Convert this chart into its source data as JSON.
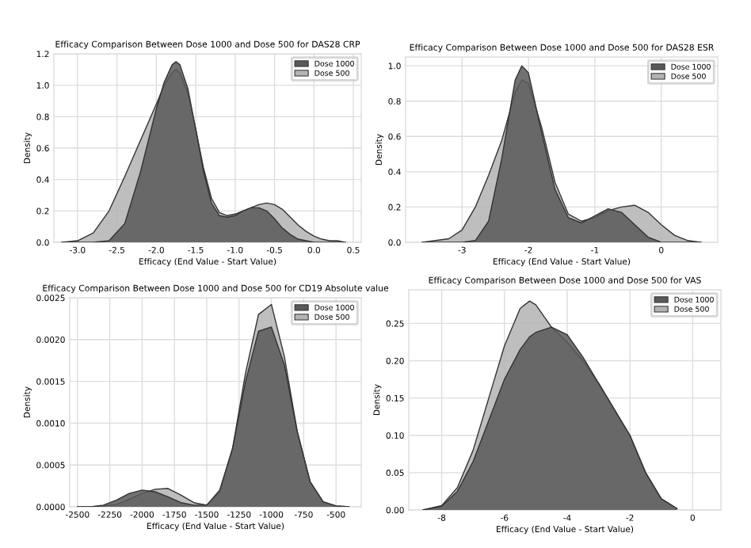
{
  "chart_data": [
    {
      "type": "area",
      "title": "Efficacy Comparison Between Dose 1000 and Dose 500 for DAS28 CRP",
      "xlabel": "Efficacy (End Value - Start Value)",
      "ylabel": "Density",
      "x": [
        -3.2,
        -3.0,
        -2.8,
        -2.6,
        -2.4,
        -2.2,
        -2.0,
        -1.9,
        -1.8,
        -1.75,
        -1.7,
        -1.6,
        -1.5,
        -1.4,
        -1.3,
        -1.2,
        -1.1,
        -1.0,
        -0.9,
        -0.8,
        -0.7,
        -0.6,
        -0.5,
        -0.4,
        -0.3,
        -0.2,
        -0.1,
        0.0,
        0.1,
        0.2,
        0.3,
        0.4
      ],
      "series": [
        {
          "name": "Dose 1000",
          "color": "#595959",
          "values": [
            0,
            0,
            0,
            0.01,
            0.12,
            0.45,
            0.85,
            1.02,
            1.13,
            1.15,
            1.13,
            0.98,
            0.72,
            0.45,
            0.25,
            0.17,
            0.16,
            0.17,
            0.2,
            0.22,
            0.22,
            0.2,
            0.15,
            0.09,
            0.05,
            0.02,
            0.01,
            0,
            0,
            0,
            0,
            0
          ]
        },
        {
          "name": "Dose 500",
          "color": "#b3b3b3",
          "values": [
            0,
            0.01,
            0.06,
            0.2,
            0.42,
            0.65,
            0.88,
            1.0,
            1.08,
            1.1,
            1.08,
            0.95,
            0.72,
            0.47,
            0.28,
            0.19,
            0.17,
            0.18,
            0.2,
            0.22,
            0.24,
            0.25,
            0.24,
            0.21,
            0.16,
            0.11,
            0.07,
            0.04,
            0.02,
            0.01,
            0.01,
            0
          ]
        }
      ],
      "xlim": [
        -3.3,
        0.6
      ],
      "ylim": [
        0,
        1.2
      ],
      "xticks": [
        {
          "value": -3.0,
          "label": "-3.0"
        },
        {
          "value": -2.5,
          "label": "-2.5"
        },
        {
          "value": -2.0,
          "label": "-2.0"
        },
        {
          "value": -1.5,
          "label": "-1.5"
        },
        {
          "value": -1.0,
          "label": "-1.0"
        },
        {
          "value": -0.5,
          "label": "-0.5"
        },
        {
          "value": 0,
          "label": "0.0"
        },
        {
          "value": 0.5,
          "label": "0.5"
        }
      ],
      "yticks": [
        {
          "value": 0,
          "label": "0.0"
        },
        {
          "value": 0.2,
          "label": "0.2"
        },
        {
          "value": 0.4,
          "label": "0.4"
        },
        {
          "value": 0.6,
          "label": "0.6"
        },
        {
          "value": 0.8,
          "label": "0.8"
        },
        {
          "value": 1.0,
          "label": "1.0"
        },
        {
          "value": 1.2,
          "label": "1.2"
        }
      ],
      "grid": true,
      "legend": "top right"
    },
    {
      "type": "area",
      "title": "Efficacy Comparison Between Dose 1000 and Dose 500 for DAS28 ESR",
      "xlabel": "Efficacy (End Value - Start Value)",
      "ylabel": "Density",
      "x": [
        -3.6,
        -3.4,
        -3.2,
        -3.0,
        -2.8,
        -2.6,
        -2.4,
        -2.2,
        -2.1,
        -2.0,
        -1.8,
        -1.6,
        -1.4,
        -1.2,
        -1.0,
        -0.8,
        -0.6,
        -0.4,
        -0.2,
        0,
        0.2,
        0.4,
        0.6
      ],
      "series": [
        {
          "name": "Dose 1000",
          "color": "#595959",
          "values": [
            0,
            0,
            0,
            0,
            0.01,
            0.12,
            0.48,
            0.92,
            1.0,
            0.96,
            0.62,
            0.3,
            0.14,
            0.11,
            0.15,
            0.19,
            0.17,
            0.1,
            0.03,
            0,
            0,
            0,
            0
          ]
        },
        {
          "name": "Dose 500",
          "color": "#b3b3b3",
          "values": [
            0,
            0.01,
            0.02,
            0.07,
            0.2,
            0.38,
            0.58,
            0.85,
            0.92,
            0.9,
            0.65,
            0.34,
            0.16,
            0.12,
            0.14,
            0.18,
            0.2,
            0.21,
            0.17,
            0.1,
            0.04,
            0.01,
            0
          ]
        }
      ],
      "xlim": [
        -3.85,
        0.85
      ],
      "ylim": [
        0,
        1.05
      ],
      "xticks": [
        -3,
        -2,
        -1,
        0
      ],
      "yticks": [
        {
          "value": 0,
          "label": "0.0"
        },
        {
          "value": 0.2,
          "label": "0.2"
        },
        {
          "value": 0.4,
          "label": "0.4"
        },
        {
          "value": 0.6,
          "label": "0.6"
        },
        {
          "value": 0.8,
          "label": "0.8"
        },
        {
          "value": 1.0,
          "label": "1.0"
        }
      ],
      "grid": true,
      "legend": "top right"
    },
    {
      "type": "area",
      "title": "Efficacy Comparison Between Dose 1000 and Dose 500 for CD19 Absolute value",
      "xlabel": "Efficacy (End Value - Start Value)",
      "ylabel": "Density",
      "x": [
        -2500,
        -2400,
        -2300,
        -2200,
        -2100,
        -2000,
        -1900,
        -1800,
        -1700,
        -1600,
        -1500,
        -1400,
        -1300,
        -1200,
        -1100,
        -1000,
        -900,
        -800,
        -700,
        -600,
        -500,
        -400
      ],
      "series": [
        {
          "name": "Dose 1000",
          "color": "#595959",
          "values": [
            0,
            0,
            2e-05,
            8e-05,
            0.00016,
            0.0002,
            0.00018,
            0.00012,
            5e-05,
            2e-05,
            2e-05,
            0.0002,
            0.0007,
            0.0015,
            0.0021,
            0.00215,
            0.0017,
            0.0009,
            0.0003,
            6e-05,
            1e-05,
            0
          ]
        },
        {
          "name": "Dose 500",
          "color": "#b3b3b3",
          "values": [
            0,
            0,
            1e-05,
            3e-05,
            9e-05,
            0.00016,
            0.00021,
            0.00022,
            0.00014,
            5e-05,
            2e-05,
            0.00018,
            0.0007,
            0.0016,
            0.0023,
            0.00242,
            0.0018,
            0.0009,
            0.0003,
            6e-05,
            1e-05,
            0
          ]
        }
      ],
      "xlim": [
        -2560,
        -305
      ],
      "ylim": [
        0,
        0.0025
      ],
      "xticks": [
        -2500,
        -2250,
        -2000,
        -1750,
        -1500,
        -1250,
        -1000,
        -750,
        -500
      ],
      "yticks": [
        {
          "value": 0,
          "label": "0.0000"
        },
        {
          "value": 0.0005,
          "label": "0.0005"
        },
        {
          "value": 0.001,
          "label": "0.0010"
        },
        {
          "value": 0.0015,
          "label": "0.0015"
        },
        {
          "value": 0.002,
          "label": "0.0020"
        },
        {
          "value": 0.0025,
          "label": "0.0025"
        }
      ],
      "grid": true,
      "legend": "top right"
    },
    {
      "type": "area",
      "title": "Efficacy Comparison Between Dose 1000 and Dose 500 for VAS",
      "xlabel": "Efficacy (End Value - Start Value)",
      "ylabel": "Density",
      "x": [
        -8.6,
        -8,
        -7.5,
        -7,
        -6.5,
        -6,
        -5.5,
        -5.2,
        -5,
        -4.5,
        -4,
        -3.5,
        -3,
        -2.5,
        -2,
        -1.5,
        -1,
        -0.5
      ],
      "series": [
        {
          "name": "Dose 1000",
          "color": "#595959",
          "values": [
            0,
            0.005,
            0.025,
            0.065,
            0.12,
            0.175,
            0.215,
            0.232,
            0.238,
            0.245,
            0.235,
            0.205,
            0.17,
            0.135,
            0.1,
            0.05,
            0.015,
            0.002
          ]
        },
        {
          "name": "Dose 500",
          "color": "#b3b3b3",
          "values": [
            0,
            0.006,
            0.03,
            0.08,
            0.15,
            0.22,
            0.27,
            0.28,
            0.275,
            0.245,
            0.225,
            0.2,
            0.17,
            0.135,
            0.1,
            0.05,
            0.015,
            0.002
          ]
        }
      ],
      "xlim": [
        -9.05,
        0.9
      ],
      "ylim": [
        0,
        0.295
      ],
      "xticks": [
        -8,
        -6,
        -4,
        -2,
        0
      ],
      "yticks": [
        {
          "value": 0,
          "label": "0.00"
        },
        {
          "value": 0.05,
          "label": "0.05"
        },
        {
          "value": 0.1,
          "label": "0.10"
        },
        {
          "value": 0.15,
          "label": "0.15"
        },
        {
          "value": 0.2,
          "label": "0.20"
        },
        {
          "value": 0.25,
          "label": "0.25"
        }
      ],
      "grid": true,
      "legend": "top right"
    }
  ]
}
